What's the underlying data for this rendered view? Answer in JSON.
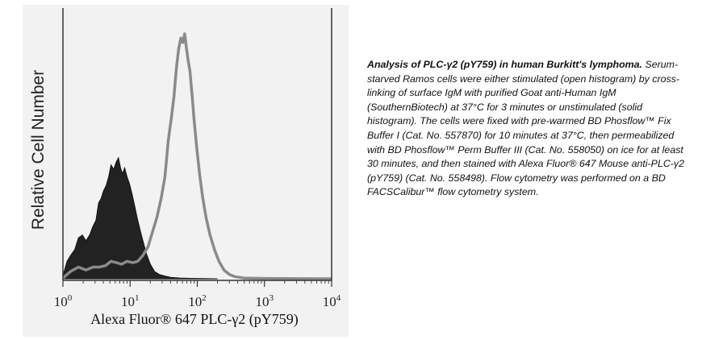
{
  "chart_data": {
    "type": "area",
    "x_scale": "log",
    "xlim": [
      1,
      10000
    ],
    "x_ticks": [
      1,
      10,
      100,
      1000,
      10000
    ],
    "tick_labels": [
      {
        "base": "10",
        "exp": "0"
      },
      {
        "base": "10",
        "exp": "1"
      },
      {
        "base": "10",
        "exp": "2"
      },
      {
        "base": "10",
        "exp": "3"
      },
      {
        "base": "10",
        "exp": "4"
      }
    ],
    "xlabel": "Alexa Fluor® 647 PLC-γ2 (pY759)",
    "ylabel": "Relative Cell Number",
    "grid": false,
    "series": [
      {
        "name": "unstimulated (solid histogram)",
        "style": "solid",
        "color": "#222222",
        "x": [
          1.0,
          1.15,
          1.3,
          1.5,
          1.7,
          1.95,
          2.2,
          2.5,
          2.8,
          3.1,
          3.4,
          3.7,
          4.0,
          4.4,
          4.8,
          5.2,
          5.7,
          6.2,
          6.7,
          7.2,
          7.7,
          8.3,
          9.0,
          9.8,
          10.7,
          11.7,
          12.7,
          14.0,
          15.5,
          17.5,
          20.0,
          23.0,
          27.0,
          32.0,
          40.0,
          55.0,
          80.0,
          200
        ],
        "y": [
          2,
          12,
          16,
          20,
          28,
          30,
          26,
          30,
          36,
          40,
          52,
          55,
          60,
          64,
          70,
          78,
          75,
          80,
          83,
          76,
          72,
          76,
          70,
          65,
          58,
          50,
          42,
          34,
          26,
          17,
          10,
          5,
          3,
          2,
          1,
          0.5,
          0.3,
          0
        ]
      },
      {
        "name": "stimulated (open histogram)",
        "style": "open",
        "color": "#8a8a8a",
        "x": [
          1.0,
          1.3,
          1.7,
          2.2,
          2.8,
          3.5,
          4.3,
          5.2,
          6.3,
          7.5,
          9.0,
          11.0,
          13.0,
          15.5,
          18.5,
          21.5,
          25.0,
          29.0,
          33.0,
          37.0,
          41.0,
          45.0,
          49.0,
          53.0,
          57.0,
          61.0,
          65.0,
          69.0,
          73.0,
          78.0,
          84.0,
          90.0,
          98.0,
          108,
          120,
          135,
          155,
          180,
          210,
          250,
          300,
          360,
          500,
          1000,
          10000
        ],
        "y": [
          0.5,
          5,
          8,
          6,
          8,
          8,
          9,
          12,
          11,
          10,
          12,
          11,
          12,
          16,
          22,
          32,
          42,
          55,
          70,
          95,
          110,
          125,
          145,
          158,
          165,
          162,
          168,
          158,
          150,
          142,
          125,
          108,
          90,
          72,
          56,
          42,
          30,
          20,
          12,
          6,
          3,
          1.5,
          0.5,
          0.2,
          0
        ]
      }
    ]
  },
  "caption": {
    "title": "Analysis of PLC-γ2 (pY759) in human Burkitt's lymphoma.",
    "body": "Serum-starved Ramos cells were either stimulated (open histogram) by cross-linking of surface IgM with purified Goat anti-Human IgM (SouthernBiotech) at 37°C for 3 minutes or unstimulated (solid histogram).  The cells were fixed with pre-warmed BD Phosflow™ Fix Buffer I (Cat. No. 557870) for 10 minutes at 37°C, then permeabilized with BD Phosflow™ Perm Buffer III (Cat. No. 558050) on ice for at least 30 minutes, and then stained with Alexa Fluor® 647 Mouse anti-PLC-γ2 (pY759) (Cat. No. 558498).  Flow cytometry was performed on a BD FACSCalibur™ flow cytometry system."
  }
}
